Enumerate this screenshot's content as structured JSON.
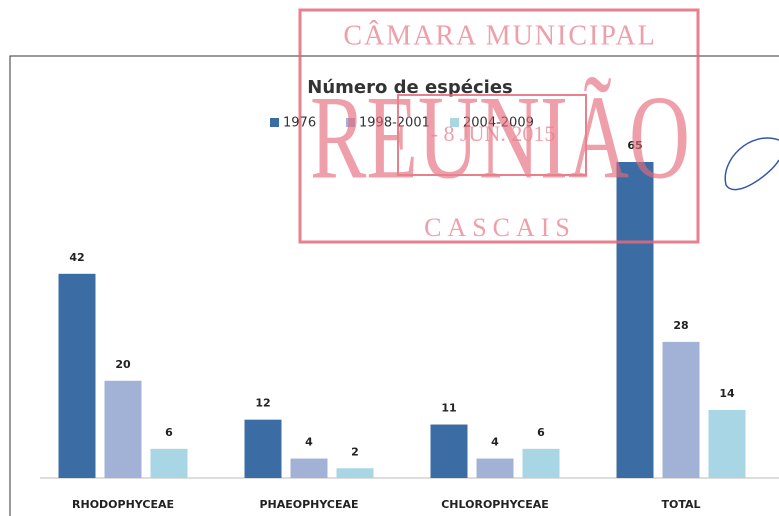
{
  "chart_data": {
    "type": "bar",
    "title": "Número de espécies",
    "categories": [
      "RHODOPHYCEAE",
      "PHAEOPHYCEAE",
      "CHLOROPHYCEAE",
      "TOTAL"
    ],
    "series": [
      {
        "name": "1976",
        "color": "#3b6da4",
        "values": [
          42,
          12,
          11,
          65
        ]
      },
      {
        "name": "1998-2001",
        "color": "#a2b2d6",
        "values": [
          20,
          4,
          4,
          28
        ]
      },
      {
        "name": "2004-2009",
        "color": "#a8d6e4",
        "values": [
          6,
          2,
          6,
          14
        ]
      }
    ]
  },
  "stamp": {
    "header": "CÂMARA MUNICIPAL",
    "word": "REUNIÃO",
    "date": "- 8 JUN. 2015",
    "footer": "CASCAIS"
  }
}
